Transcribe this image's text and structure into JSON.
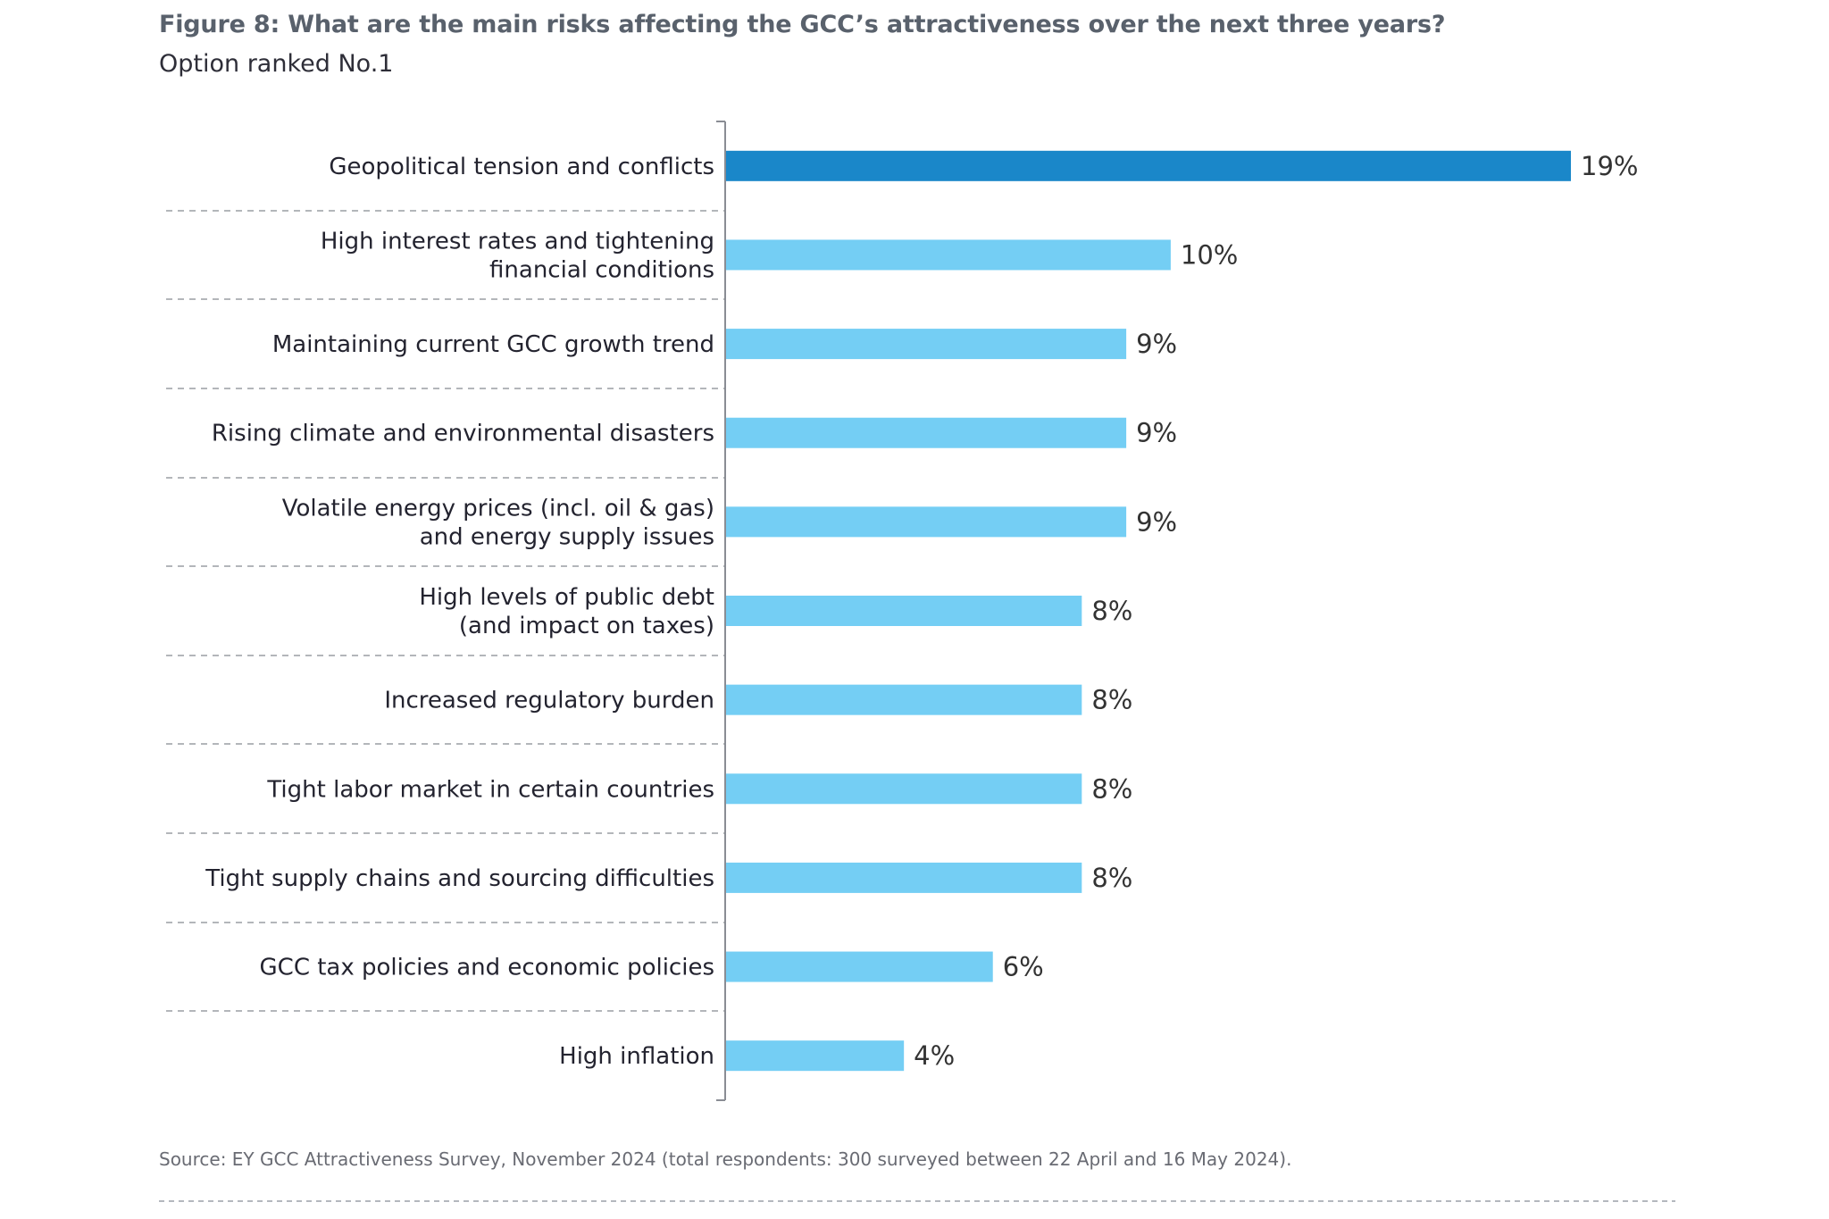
{
  "header": {
    "title": "Figure 8: What are the main risks affecting the GCC’s attractiveness over the next three years?",
    "subtitle": "Option ranked No.1"
  },
  "footer": {
    "source": "Source: EY GCC Attractiveness Survey, November 2024 (total respondents: 300 surveyed between 22 April and 16 May 2024)."
  },
  "colors": {
    "highlight_bar": "#1A87C9",
    "bar": "#74CEF4",
    "axis": "#8A8D94",
    "divider": "#9A9DA3"
  },
  "chart_data": {
    "type": "bar",
    "orientation": "horizontal",
    "title": "Figure 8: What are the main risks affecting the GCC’s attractiveness over the next three years?",
    "subtitle": "Option ranked No.1",
    "xlabel": "",
    "ylabel": "",
    "unit": "%",
    "xlim": [
      0,
      19
    ],
    "grid": false,
    "legend": "none",
    "categories": [
      [
        "Geopolitical tension and conflicts"
      ],
      [
        "High interest rates and tightening",
        "financial conditions"
      ],
      [
        "Maintaining current GCC growth trend"
      ],
      [
        "Rising climate and environmental disasters"
      ],
      [
        "Volatile energy prices (incl. oil & gas)",
        "and energy supply issues"
      ],
      [
        "High levels of public debt",
        "(and impact on taxes)"
      ],
      [
        "Increased regulatory burden"
      ],
      [
        "Tight labor market in certain countries"
      ],
      [
        "Tight supply chains and sourcing difficulties"
      ],
      [
        "GCC tax policies and economic policies"
      ],
      [
        "High inflation"
      ]
    ],
    "values": [
      19,
      10,
      9,
      9,
      9,
      8,
      8,
      8,
      8,
      6,
      4
    ],
    "value_labels": [
      "19%",
      "10%",
      "9%",
      "9%",
      "9%",
      "8%",
      "8%",
      "8%",
      "8%",
      "6%",
      "4%"
    ],
    "highlighted_index": 0
  }
}
